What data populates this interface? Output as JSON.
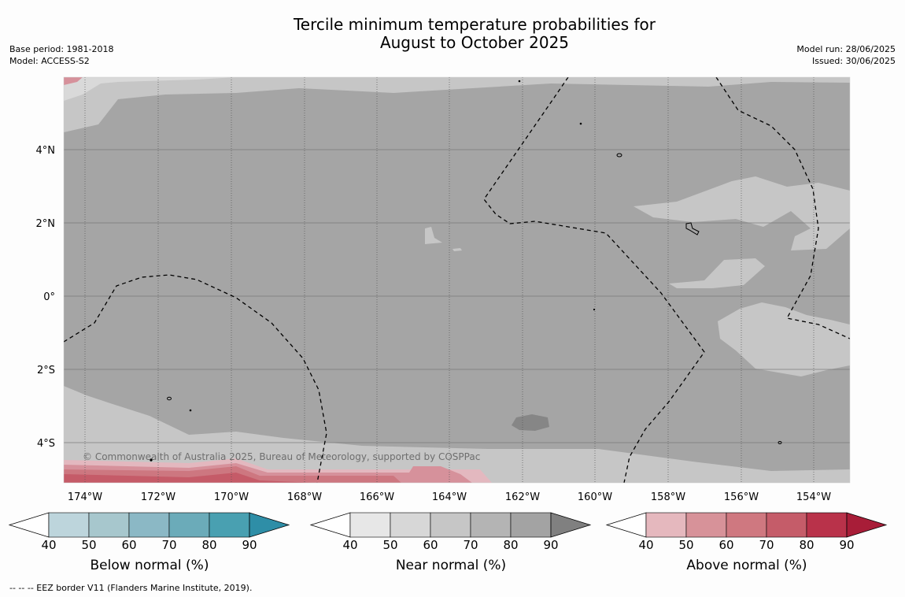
{
  "title": {
    "line1": "Tercile minimum temperature probabilities for",
    "line2": "August to October 2025"
  },
  "meta_left": {
    "base_period": "Base period: 1981-2018",
    "model": "Model: ACCESS-S2"
  },
  "meta_right": {
    "model_run": "Model run: 28/06/2025",
    "issued": "Issued: 30/06/2025"
  },
  "map": {
    "lat_labels": [
      "4°N",
      "2°N",
      "0°",
      "2°S",
      "4°S"
    ],
    "lon_labels": [
      "174°W",
      "172°W",
      "170°W",
      "168°W",
      "166°W",
      "164°W",
      "162°W",
      "160°W",
      "158°W",
      "156°W",
      "154°W"
    ],
    "copyright": "© Commonwealth of Australia 2025, Bureau of Meteorology, supported by COSPPac",
    "colors": {
      "near_light": "#c6c6c6",
      "near_lighter": "#d9d9d9",
      "near_base": "#a5a5a5",
      "near_dark": "#868686",
      "above_40": "#e3b8bf",
      "above_50": "#d6919b",
      "above_60": "#cd7780",
      "above_70": "#c55b68"
    }
  },
  "legends": [
    {
      "label": "Below normal (%)",
      "ticks": [
        "40",
        "50",
        "60",
        "70",
        "80",
        "90"
      ],
      "colors": [
        "#bdd5dc",
        "#a7c7cd",
        "#8bb8c5",
        "#6babb9",
        "#49a0b1",
        "#2e8ea7"
      ]
    },
    {
      "label": "Near normal (%)",
      "ticks": [
        "40",
        "50",
        "60",
        "70",
        "80",
        "90"
      ],
      "colors": [
        "#e7e7e7",
        "#d7d7d7",
        "#c6c6c6",
        "#b4b4b4",
        "#a3a3a3",
        "#808080"
      ]
    },
    {
      "label": "Above normal (%)",
      "ticks": [
        "40",
        "50",
        "60",
        "70",
        "80",
        "90"
      ],
      "colors": [
        "#e5b8be",
        "#d79299",
        "#cf7880",
        "#c55c69",
        "#b9324a",
        "#a81d38"
      ]
    }
  ],
  "footnote": "--  --  -- EEZ border V11 (Flanders Marine Institute, 2019)."
}
